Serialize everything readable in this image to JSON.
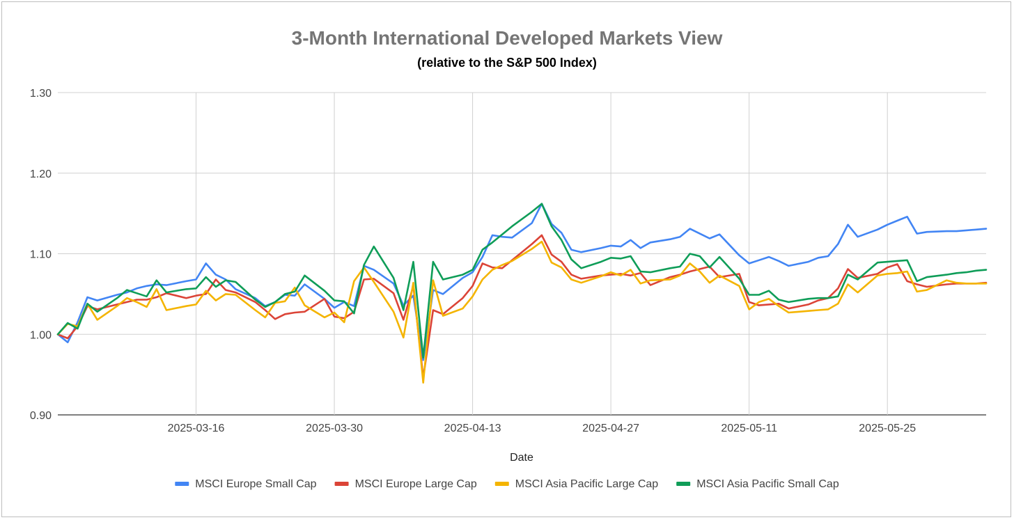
{
  "chart_data": {
    "type": "line",
    "title": "3-Month International Developed Markets View",
    "subtitle": "(relative to the S&P 500 Index)",
    "xlabel": "Date",
    "ylabel": "",
    "ylim": [
      0.9,
      1.3
    ],
    "yticks": [
      "0.90",
      "1.00",
      "1.10",
      "1.20",
      "1.30"
    ],
    "ytick_values": [
      0.9,
      1.0,
      1.1,
      1.2,
      1.3
    ],
    "xlim_day": [
      0,
      94
    ],
    "xticks": [
      {
        "label": "2025-03-16",
        "day": 14
      },
      {
        "label": "2025-03-30",
        "day": 28
      },
      {
        "label": "2025-04-13",
        "day": 42
      },
      {
        "label": "2025-04-27",
        "day": 56
      },
      {
        "label": "2025-05-11",
        "day": 70
      },
      {
        "label": "2025-05-25",
        "day": 84
      }
    ],
    "grid": true,
    "legend_position": "bottom",
    "x_day": [
      0,
      1,
      2,
      3,
      4,
      6,
      7,
      8,
      9,
      10,
      11,
      13,
      14,
      15,
      16,
      17,
      18,
      20,
      21,
      22,
      23,
      24,
      25,
      27,
      28,
      29,
      30,
      31,
      32,
      34,
      35,
      36,
      37,
      38,
      39,
      41,
      42,
      43,
      44,
      45,
      46,
      48,
      49,
      50,
      51,
      52,
      53,
      55,
      56,
      57,
      58,
      59,
      60,
      62,
      63,
      64,
      65,
      66,
      67,
      69,
      70,
      71,
      72,
      73,
      74,
      76,
      77,
      78,
      79,
      80,
      81,
      83,
      84,
      85,
      86,
      87,
      88,
      90,
      91,
      92,
      93,
      94
    ],
    "series": [
      {
        "name": "MSCI Europe Small Cap",
        "color": "#4285f4",
        "values": [
          1.0,
          0.99,
          1.015,
          1.046,
          1.042,
          1.049,
          1.052,
          1.057,
          1.06,
          1.062,
          1.061,
          1.066,
          1.068,
          1.088,
          1.074,
          1.068,
          1.056,
          1.045,
          1.035,
          1.04,
          1.049,
          1.048,
          1.062,
          1.044,
          1.033,
          1.04,
          1.035,
          1.085,
          1.08,
          1.063,
          1.036,
          1.048,
          0.968,
          1.055,
          1.05,
          1.07,
          1.077,
          1.096,
          1.123,
          1.121,
          1.12,
          1.138,
          1.162,
          1.137,
          1.126,
          1.105,
          1.102,
          1.107,
          1.11,
          1.109,
          1.117,
          1.107,
          1.114,
          1.118,
          1.121,
          1.131,
          1.125,
          1.119,
          1.124,
          1.098,
          1.088,
          1.092,
          1.096,
          1.091,
          1.085,
          1.09,
          1.095,
          1.097,
          1.112,
          1.136,
          1.121,
          1.13,
          1.136,
          1.141,
          1.146,
          1.125,
          1.127,
          1.128,
          1.128,
          1.129,
          1.13,
          1.131
        ]
      },
      {
        "name": "MSCI Europe Large Cap",
        "color": "#db4437",
        "values": [
          1.0,
          0.995,
          1.01,
          1.035,
          1.031,
          1.037,
          1.04,
          1.043,
          1.043,
          1.046,
          1.051,
          1.045,
          1.048,
          1.05,
          1.068,
          1.055,
          1.052,
          1.04,
          1.03,
          1.019,
          1.025,
          1.027,
          1.028,
          1.044,
          1.022,
          1.02,
          1.028,
          1.068,
          1.069,
          1.051,
          1.018,
          1.06,
          0.946,
          1.03,
          1.025,
          1.045,
          1.06,
          1.088,
          1.083,
          1.082,
          1.092,
          1.112,
          1.123,
          1.099,
          1.09,
          1.074,
          1.069,
          1.073,
          1.074,
          1.075,
          1.073,
          1.076,
          1.061,
          1.071,
          1.074,
          1.078,
          1.081,
          1.084,
          1.071,
          1.075,
          1.04,
          1.036,
          1.037,
          1.038,
          1.032,
          1.037,
          1.042,
          1.045,
          1.057,
          1.081,
          1.07,
          1.075,
          1.083,
          1.087,
          1.066,
          1.062,
          1.059,
          1.062,
          1.063,
          1.063,
          1.063,
          1.064
        ]
      },
      {
        "name": "MSCI Asia Pacific Large Cap",
        "color": "#f4b400",
        "values": [
          1.0,
          1.013,
          1.01,
          1.038,
          1.018,
          1.035,
          1.045,
          1.04,
          1.034,
          1.056,
          1.03,
          1.035,
          1.037,
          1.054,
          1.042,
          1.05,
          1.049,
          1.03,
          1.021,
          1.039,
          1.041,
          1.058,
          1.036,
          1.021,
          1.027,
          1.015,
          1.066,
          1.083,
          1.065,
          1.028,
          0.996,
          1.064,
          0.94,
          1.067,
          1.023,
          1.032,
          1.047,
          1.068,
          1.08,
          1.086,
          1.091,
          1.106,
          1.115,
          1.089,
          1.083,
          1.068,
          1.064,
          1.072,
          1.077,
          1.073,
          1.08,
          1.063,
          1.067,
          1.068,
          1.073,
          1.088,
          1.078,
          1.064,
          1.073,
          1.06,
          1.031,
          1.04,
          1.044,
          1.035,
          1.027,
          1.029,
          1.03,
          1.031,
          1.038,
          1.062,
          1.052,
          1.073,
          1.075,
          1.076,
          1.078,
          1.053,
          1.055,
          1.067,
          1.064,
          1.063,
          1.063,
          1.063
        ]
      },
      {
        "name": "MSCI Asia Pacific Small Cap",
        "color": "#0f9d58",
        "values": [
          1.0,
          1.014,
          1.007,
          1.038,
          1.028,
          1.045,
          1.055,
          1.051,
          1.047,
          1.067,
          1.052,
          1.056,
          1.057,
          1.071,
          1.059,
          1.067,
          1.065,
          1.043,
          1.034,
          1.04,
          1.05,
          1.053,
          1.073,
          1.054,
          1.042,
          1.041,
          1.026,
          1.086,
          1.109,
          1.07,
          1.03,
          1.09,
          0.971,
          1.09,
          1.068,
          1.074,
          1.08,
          1.105,
          1.114,
          1.124,
          1.134,
          1.152,
          1.162,
          1.134,
          1.117,
          1.093,
          1.082,
          1.09,
          1.095,
          1.094,
          1.097,
          1.078,
          1.077,
          1.082,
          1.084,
          1.1,
          1.097,
          1.083,
          1.096,
          1.069,
          1.049,
          1.049,
          1.054,
          1.043,
          1.04,
          1.044,
          1.045,
          1.045,
          1.047,
          1.074,
          1.068,
          1.089,
          1.09,
          1.091,
          1.092,
          1.066,
          1.071,
          1.074,
          1.076,
          1.077,
          1.079,
          1.08
        ]
      }
    ]
  }
}
